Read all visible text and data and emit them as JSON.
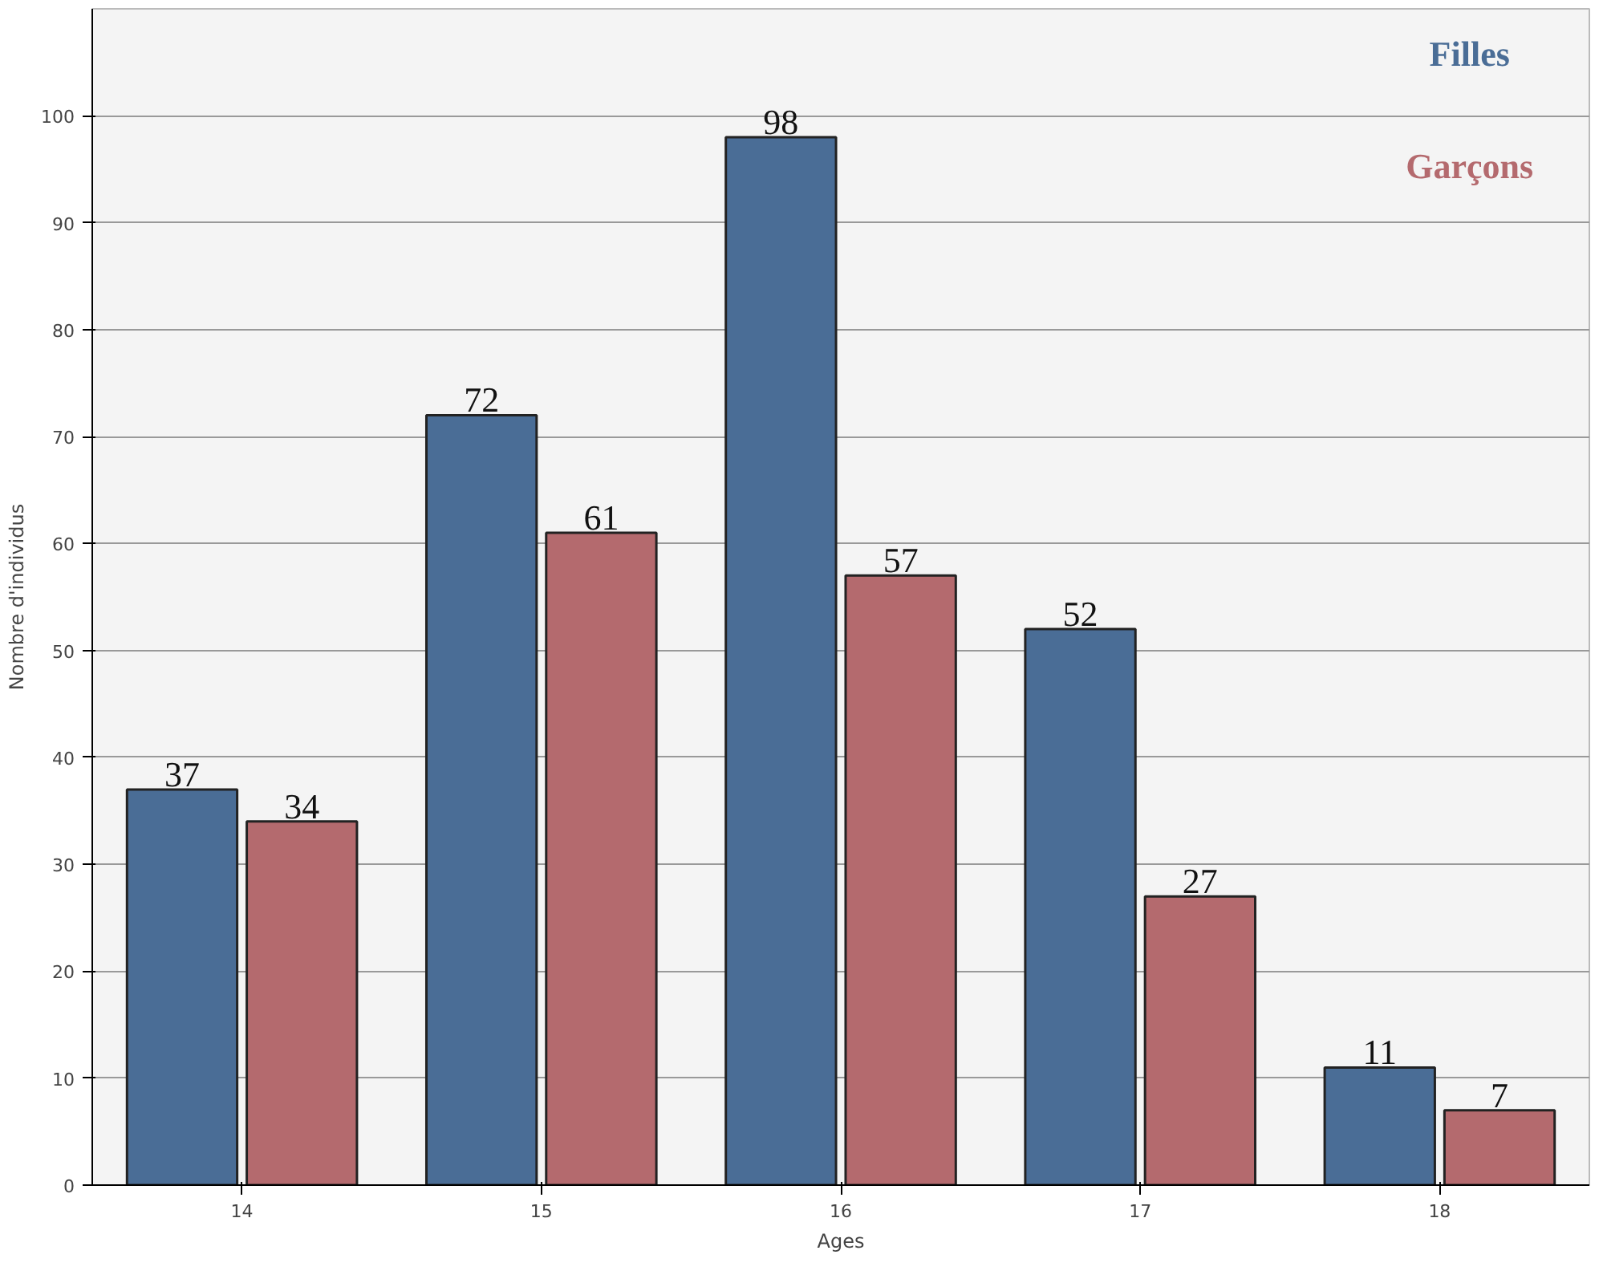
{
  "chart_data": {
    "type": "bar",
    "xlabel": "Ages",
    "ylabel": "Nombre d'individus",
    "categories": [
      "14",
      "15",
      "16",
      "17",
      "18"
    ],
    "series": [
      {
        "name": "Filles",
        "color": "#4a6d96",
        "values": [
          37,
          72,
          98,
          52,
          11
        ]
      },
      {
        "name": "Garçons",
        "color": "#b46a6e",
        "values": [
          34,
          61,
          57,
          27,
          7
        ]
      }
    ],
    "ylim": [
      0,
      110
    ],
    "yticks": [
      0,
      10,
      20,
      30,
      40,
      50,
      60,
      70,
      80,
      90,
      100
    ],
    "grid": "y",
    "legend": "top right",
    "data_labels": true
  }
}
